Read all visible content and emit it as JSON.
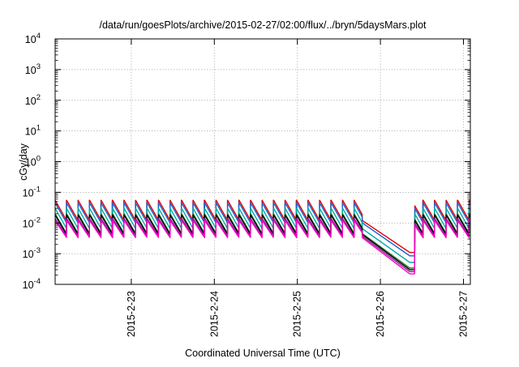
{
  "chart_data": {
    "type": "line",
    "title": "/data/run/goesPlots/archive/2015-02-27/02:00/flux/../bryn/5daysMars.plot",
    "xlabel": "Coordinated Universal Time (UTC)",
    "ylabel": "cGy/day",
    "yscale": "log",
    "ylim": [
      0.0001,
      10000
    ],
    "xlim": [
      "2015-02-22 02:00",
      "2015-02-27 02:00"
    ],
    "grid": true,
    "legend": "none",
    "y_ticks": [
      {
        "base": "10",
        "exp": "-4"
      },
      {
        "base": "10",
        "exp": "-3"
      },
      {
        "base": "10",
        "exp": "-2"
      },
      {
        "base": "10",
        "exp": "-1"
      },
      {
        "base": "10",
        "exp": "0"
      },
      {
        "base": "10",
        "exp": "1"
      },
      {
        "base": "10",
        "exp": "2"
      },
      {
        "base": "10",
        "exp": "3"
      },
      {
        "base": "10",
        "exp": "4"
      }
    ],
    "x_ticks": [
      {
        "label": "2015-2-23",
        "day": 0.917
      },
      {
        "label": "2015-2-24",
        "day": 1.917
      },
      {
        "label": "2015-2-25",
        "day": 2.917
      },
      {
        "label": "2015-2-26",
        "day": 3.917
      },
      {
        "label": "2015-2-27",
        "day": 4.917
      }
    ],
    "pattern": {
      "cycle_days": 0.1385,
      "gap_start_day": 3.7,
      "gap_min_day": 4.27,
      "recovery_day": 4.33
    },
    "series": [
      {
        "color": "#e00000",
        "peak": 0.055,
        "trough": 0.012,
        "gap_min": 0.0011
      },
      {
        "color": "#1a5fd0",
        "peak": 0.045,
        "trough": 0.01,
        "gap_min": 0.00085
      },
      {
        "color": "#00a8a8",
        "peak": 0.03,
        "trough": 0.0065,
        "gap_min": 0.00052
      },
      {
        "color": "#2a7a2a",
        "peak": 0.02,
        "trough": 0.0045,
        "gap_min": 0.00034
      },
      {
        "color": "#000000",
        "peak": 0.018,
        "trough": 0.0042,
        "gap_min": 0.0003
      },
      {
        "color": "#8a1aa0",
        "peak": 0.014,
        "trough": 0.0037,
        "gap_min": 0.00026
      },
      {
        "color": "#ff00c0",
        "peak": 0.012,
        "trough": 0.0033,
        "gap_min": 0.00022
      }
    ]
  }
}
